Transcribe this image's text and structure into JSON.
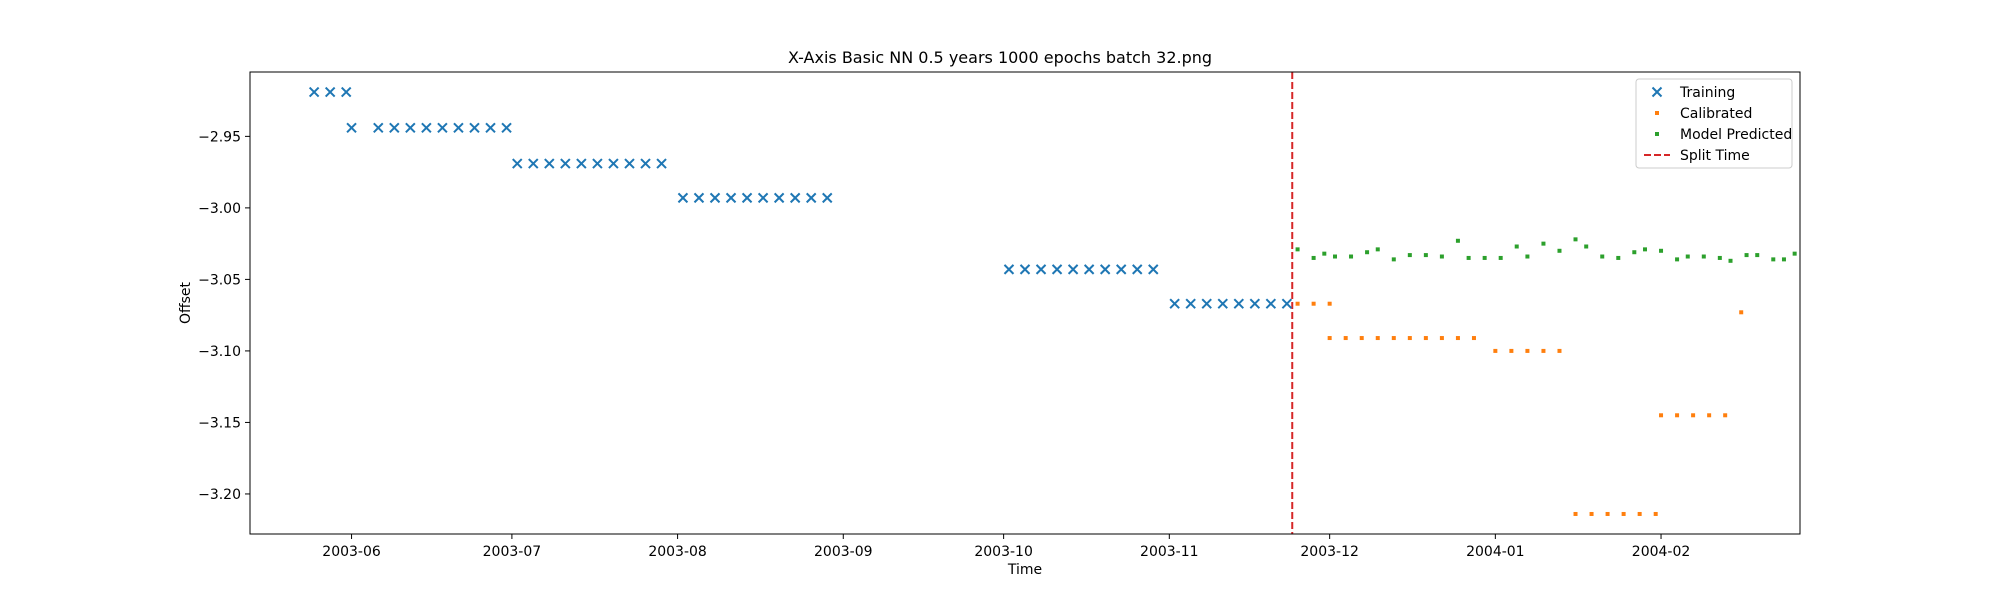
{
  "chart_data": {
    "type": "scatter",
    "title": "X-Axis Basic NN 0.5 years 1000 epochs batch 32.png",
    "xlabel": "Time",
    "ylabel": "Offset",
    "x_axis": "date",
    "xlim": [
      "2003-05-13",
      "2004-02-27"
    ],
    "ylim": [
      -3.228,
      -2.905
    ],
    "xticks": [
      "2003-06",
      "2003-07",
      "2003-08",
      "2003-09",
      "2003-10",
      "2003-11",
      "2003-12",
      "2004-01",
      "2004-02"
    ],
    "ytick_values": [
      -2.95,
      -3.0,
      -3.05,
      -3.1,
      -3.15,
      -3.2
    ],
    "ytick_labels": [
      "−2.95",
      "−3.00",
      "−3.05",
      "−3.10",
      "−3.15",
      "−3.20"
    ],
    "grid": false,
    "legend_position": "top-right",
    "split_time": {
      "name": "Split Time",
      "x": "2003-11-24",
      "color": "#d62728"
    },
    "series": [
      {
        "name": "Training",
        "marker": "x",
        "color": "#1f77b4",
        "points": [
          {
            "x": "2003-05-25",
            "y": -2.919
          },
          {
            "x": "2003-05-28",
            "y": -2.919
          },
          {
            "x": "2003-05-31",
            "y": -2.919
          },
          {
            "x": "2003-06-01",
            "y": -2.944
          },
          {
            "x": "2003-06-06",
            "y": -2.944
          },
          {
            "x": "2003-06-09",
            "y": -2.944
          },
          {
            "x": "2003-06-12",
            "y": -2.944
          },
          {
            "x": "2003-06-15",
            "y": -2.944
          },
          {
            "x": "2003-06-18",
            "y": -2.944
          },
          {
            "x": "2003-06-21",
            "y": -2.944
          },
          {
            "x": "2003-06-24",
            "y": -2.944
          },
          {
            "x": "2003-06-27",
            "y": -2.944
          },
          {
            "x": "2003-06-30",
            "y": -2.944
          },
          {
            "x": "2003-07-02",
            "y": -2.969
          },
          {
            "x": "2003-07-05",
            "y": -2.969
          },
          {
            "x": "2003-07-08",
            "y": -2.969
          },
          {
            "x": "2003-07-11",
            "y": -2.969
          },
          {
            "x": "2003-07-14",
            "y": -2.969
          },
          {
            "x": "2003-07-17",
            "y": -2.969
          },
          {
            "x": "2003-07-20",
            "y": -2.969
          },
          {
            "x": "2003-07-23",
            "y": -2.969
          },
          {
            "x": "2003-07-26",
            "y": -2.969
          },
          {
            "x": "2003-07-29",
            "y": -2.969
          },
          {
            "x": "2003-08-02",
            "y": -2.993
          },
          {
            "x": "2003-08-05",
            "y": -2.993
          },
          {
            "x": "2003-08-08",
            "y": -2.993
          },
          {
            "x": "2003-08-11",
            "y": -2.993
          },
          {
            "x": "2003-08-14",
            "y": -2.993
          },
          {
            "x": "2003-08-17",
            "y": -2.993
          },
          {
            "x": "2003-08-20",
            "y": -2.993
          },
          {
            "x": "2003-08-23",
            "y": -2.993
          },
          {
            "x": "2003-08-26",
            "y": -2.993
          },
          {
            "x": "2003-08-29",
            "y": -2.993
          },
          {
            "x": "2003-10-02",
            "y": -3.043
          },
          {
            "x": "2003-10-05",
            "y": -3.043
          },
          {
            "x": "2003-10-08",
            "y": -3.043
          },
          {
            "x": "2003-10-11",
            "y": -3.043
          },
          {
            "x": "2003-10-14",
            "y": -3.043
          },
          {
            "x": "2003-10-17",
            "y": -3.043
          },
          {
            "x": "2003-10-20",
            "y": -3.043
          },
          {
            "x": "2003-10-23",
            "y": -3.043
          },
          {
            "x": "2003-10-26",
            "y": -3.043
          },
          {
            "x": "2003-10-29",
            "y": -3.043
          },
          {
            "x": "2003-11-02",
            "y": -3.067
          },
          {
            "x": "2003-11-05",
            "y": -3.067
          },
          {
            "x": "2003-11-08",
            "y": -3.067
          },
          {
            "x": "2003-11-11",
            "y": -3.067
          },
          {
            "x": "2003-11-14",
            "y": -3.067
          },
          {
            "x": "2003-11-17",
            "y": -3.067
          },
          {
            "x": "2003-11-20",
            "y": -3.067
          },
          {
            "x": "2003-11-23",
            "y": -3.067
          }
        ]
      },
      {
        "name": "Calibrated",
        "marker": "dot",
        "color": "#ff7f0e",
        "points": [
          {
            "x": "2003-11-25",
            "y": -3.067
          },
          {
            "x": "2003-11-28",
            "y": -3.067
          },
          {
            "x": "2003-12-01",
            "y": -3.067
          },
          {
            "x": "2003-12-01",
            "y": -3.091
          },
          {
            "x": "2003-12-04",
            "y": -3.091
          },
          {
            "x": "2003-12-07",
            "y": -3.091
          },
          {
            "x": "2003-12-10",
            "y": -3.091
          },
          {
            "x": "2003-12-13",
            "y": -3.091
          },
          {
            "x": "2003-12-16",
            "y": -3.091
          },
          {
            "x": "2003-12-19",
            "y": -3.091
          },
          {
            "x": "2003-12-22",
            "y": -3.091
          },
          {
            "x": "2003-12-25",
            "y": -3.091
          },
          {
            "x": "2003-12-28",
            "y": -3.091
          },
          {
            "x": "2004-01-01",
            "y": -3.1
          },
          {
            "x": "2004-01-04",
            "y": -3.1
          },
          {
            "x": "2004-01-07",
            "y": -3.1
          },
          {
            "x": "2004-01-10",
            "y": -3.1
          },
          {
            "x": "2004-01-13",
            "y": -3.1
          },
          {
            "x": "2004-01-16",
            "y": -3.214
          },
          {
            "x": "2004-01-19",
            "y": -3.214
          },
          {
            "x": "2004-01-22",
            "y": -3.214
          },
          {
            "x": "2004-01-25",
            "y": -3.214
          },
          {
            "x": "2004-01-28",
            "y": -3.214
          },
          {
            "x": "2004-01-31",
            "y": -3.214
          },
          {
            "x": "2004-02-01",
            "y": -3.145
          },
          {
            "x": "2004-02-04",
            "y": -3.145
          },
          {
            "x": "2004-02-07",
            "y": -3.145
          },
          {
            "x": "2004-02-10",
            "y": -3.145
          },
          {
            "x": "2004-02-13",
            "y": -3.145
          },
          {
            "x": "2004-02-16",
            "y": -3.073
          }
        ]
      },
      {
        "name": "Model Predicted",
        "marker": "dot",
        "color": "#2ca02c",
        "points": [
          {
            "x": "2003-11-25",
            "y": -3.029
          },
          {
            "x": "2003-11-28",
            "y": -3.035
          },
          {
            "x": "2003-11-30",
            "y": -3.032
          },
          {
            "x": "2003-12-02",
            "y": -3.034
          },
          {
            "x": "2003-12-05",
            "y": -3.034
          },
          {
            "x": "2003-12-08",
            "y": -3.031
          },
          {
            "x": "2003-12-10",
            "y": -3.029
          },
          {
            "x": "2003-12-13",
            "y": -3.036
          },
          {
            "x": "2003-12-16",
            "y": -3.033
          },
          {
            "x": "2003-12-19",
            "y": -3.033
          },
          {
            "x": "2003-12-22",
            "y": -3.034
          },
          {
            "x": "2003-12-25",
            "y": -3.023
          },
          {
            "x": "2003-12-27",
            "y": -3.035
          },
          {
            "x": "2003-12-30",
            "y": -3.035
          },
          {
            "x": "2004-01-02",
            "y": -3.035
          },
          {
            "x": "2004-01-05",
            "y": -3.027
          },
          {
            "x": "2004-01-07",
            "y": -3.034
          },
          {
            "x": "2004-01-10",
            "y": -3.025
          },
          {
            "x": "2004-01-13",
            "y": -3.03
          },
          {
            "x": "2004-01-16",
            "y": -3.022
          },
          {
            "x": "2004-01-18",
            "y": -3.027
          },
          {
            "x": "2004-01-21",
            "y": -3.034
          },
          {
            "x": "2004-01-24",
            "y": -3.035
          },
          {
            "x": "2004-01-27",
            "y": -3.031
          },
          {
            "x": "2004-01-29",
            "y": -3.029
          },
          {
            "x": "2004-02-01",
            "y": -3.03
          },
          {
            "x": "2004-02-04",
            "y": -3.036
          },
          {
            "x": "2004-02-06",
            "y": -3.034
          },
          {
            "x": "2004-02-09",
            "y": -3.034
          },
          {
            "x": "2004-02-12",
            "y": -3.035
          },
          {
            "x": "2004-02-14",
            "y": -3.037
          },
          {
            "x": "2004-02-17",
            "y": -3.033
          },
          {
            "x": "2004-02-19",
            "y": -3.033
          },
          {
            "x": "2004-02-22",
            "y": -3.036
          },
          {
            "x": "2004-02-24",
            "y": -3.036
          },
          {
            "x": "2004-02-26",
            "y": -3.032
          }
        ]
      }
    ]
  }
}
